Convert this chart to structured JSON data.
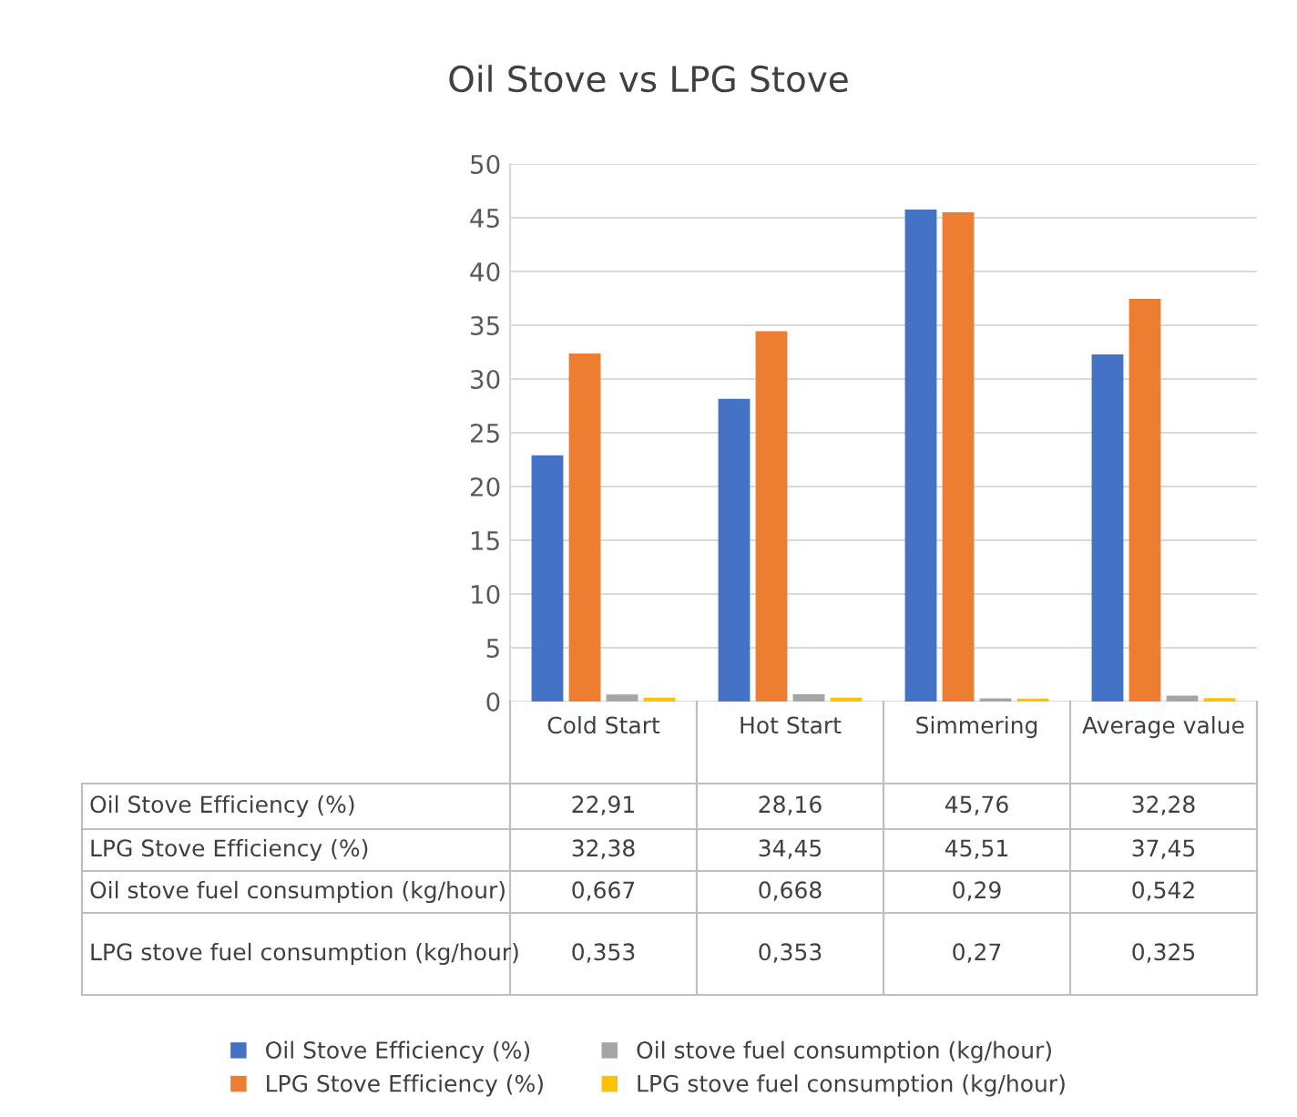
{
  "chart_data": {
    "type": "bar",
    "title": "Oil Stove vs LPG Stove",
    "categories": [
      "Cold Start",
      "Hot Start",
      "Simmering",
      "Average value"
    ],
    "series": [
      {
        "name": "Oil Stove Efficiency (%)",
        "color": "#4472c4",
        "values": [
          22.91,
          28.16,
          45.76,
          32.28
        ],
        "value_labels": [
          "22,91",
          "28,16",
          "45,76",
          "32,28"
        ]
      },
      {
        "name": "LPG Stove Efficiency (%)",
        "color": "#ed7d31",
        "values": [
          32.38,
          34.45,
          45.51,
          37.45
        ],
        "value_labels": [
          "32,38",
          "34,45",
          "45,51",
          "37,45"
        ]
      },
      {
        "name": "Oil stove fuel consumption (kg/hour)",
        "color": "#a5a5a5",
        "values": [
          0.667,
          0.668,
          0.29,
          0.542
        ],
        "value_labels": [
          "0,667",
          "0,668",
          "0,29",
          "0,542"
        ]
      },
      {
        "name": "LPG stove fuel consumption (kg/hour)",
        "color": "#ffc000",
        "values": [
          0.353,
          0.353,
          0.27,
          0.325
        ],
        "value_labels": [
          "0,353",
          "0,353",
          "0,27",
          "0,325"
        ]
      }
    ],
    "ylim": [
      0,
      50
    ],
    "yticks": [
      0,
      5,
      10,
      15,
      20,
      25,
      30,
      35,
      40,
      45,
      50
    ],
    "grid": "y",
    "legend": "bottom"
  }
}
